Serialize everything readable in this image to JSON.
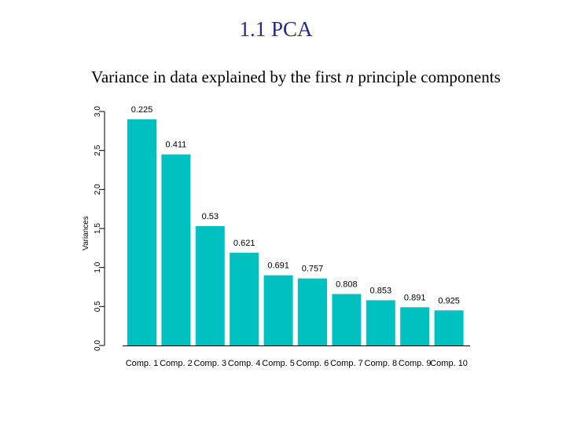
{
  "slide": {
    "title": "1.1 PCA",
    "subtitle_before": "Variance in data explained by the first ",
    "subtitle_var": "n",
    "subtitle_after": " principle components"
  },
  "colors": {
    "bar": "#00c0c0",
    "title": "#262a86",
    "axis": "#000000"
  },
  "chart_data": {
    "type": "bar",
    "title": "",
    "xlabel": "",
    "ylabel": "Variances",
    "ylim": [
      0,
      3.0
    ],
    "yticks": [
      0.0,
      0.5,
      1.0,
      1.5,
      2.0,
      2.5,
      3.0
    ],
    "ytick_labels": [
      "0.0",
      "0.5",
      "1.0",
      "1.5",
      "2.0",
      "2.5",
      "3.0"
    ],
    "categories": [
      "Comp. 1",
      "Comp. 2",
      "Comp. 3",
      "Comp. 4",
      "Comp. 5",
      "Comp. 6",
      "Comp. 7",
      "Comp. 8",
      "Comp. 9",
      "Comp. 10"
    ],
    "values": [
      2.9,
      2.45,
      1.53,
      1.19,
      0.9,
      0.86,
      0.66,
      0.58,
      0.49,
      0.45
    ],
    "data_labels": [
      "0.225",
      "0.411",
      "0.53",
      "0.621",
      "0.691",
      "0.757",
      "0.808",
      "0.853",
      "0.891",
      "0.925"
    ],
    "grid": false,
    "legend": "none"
  }
}
